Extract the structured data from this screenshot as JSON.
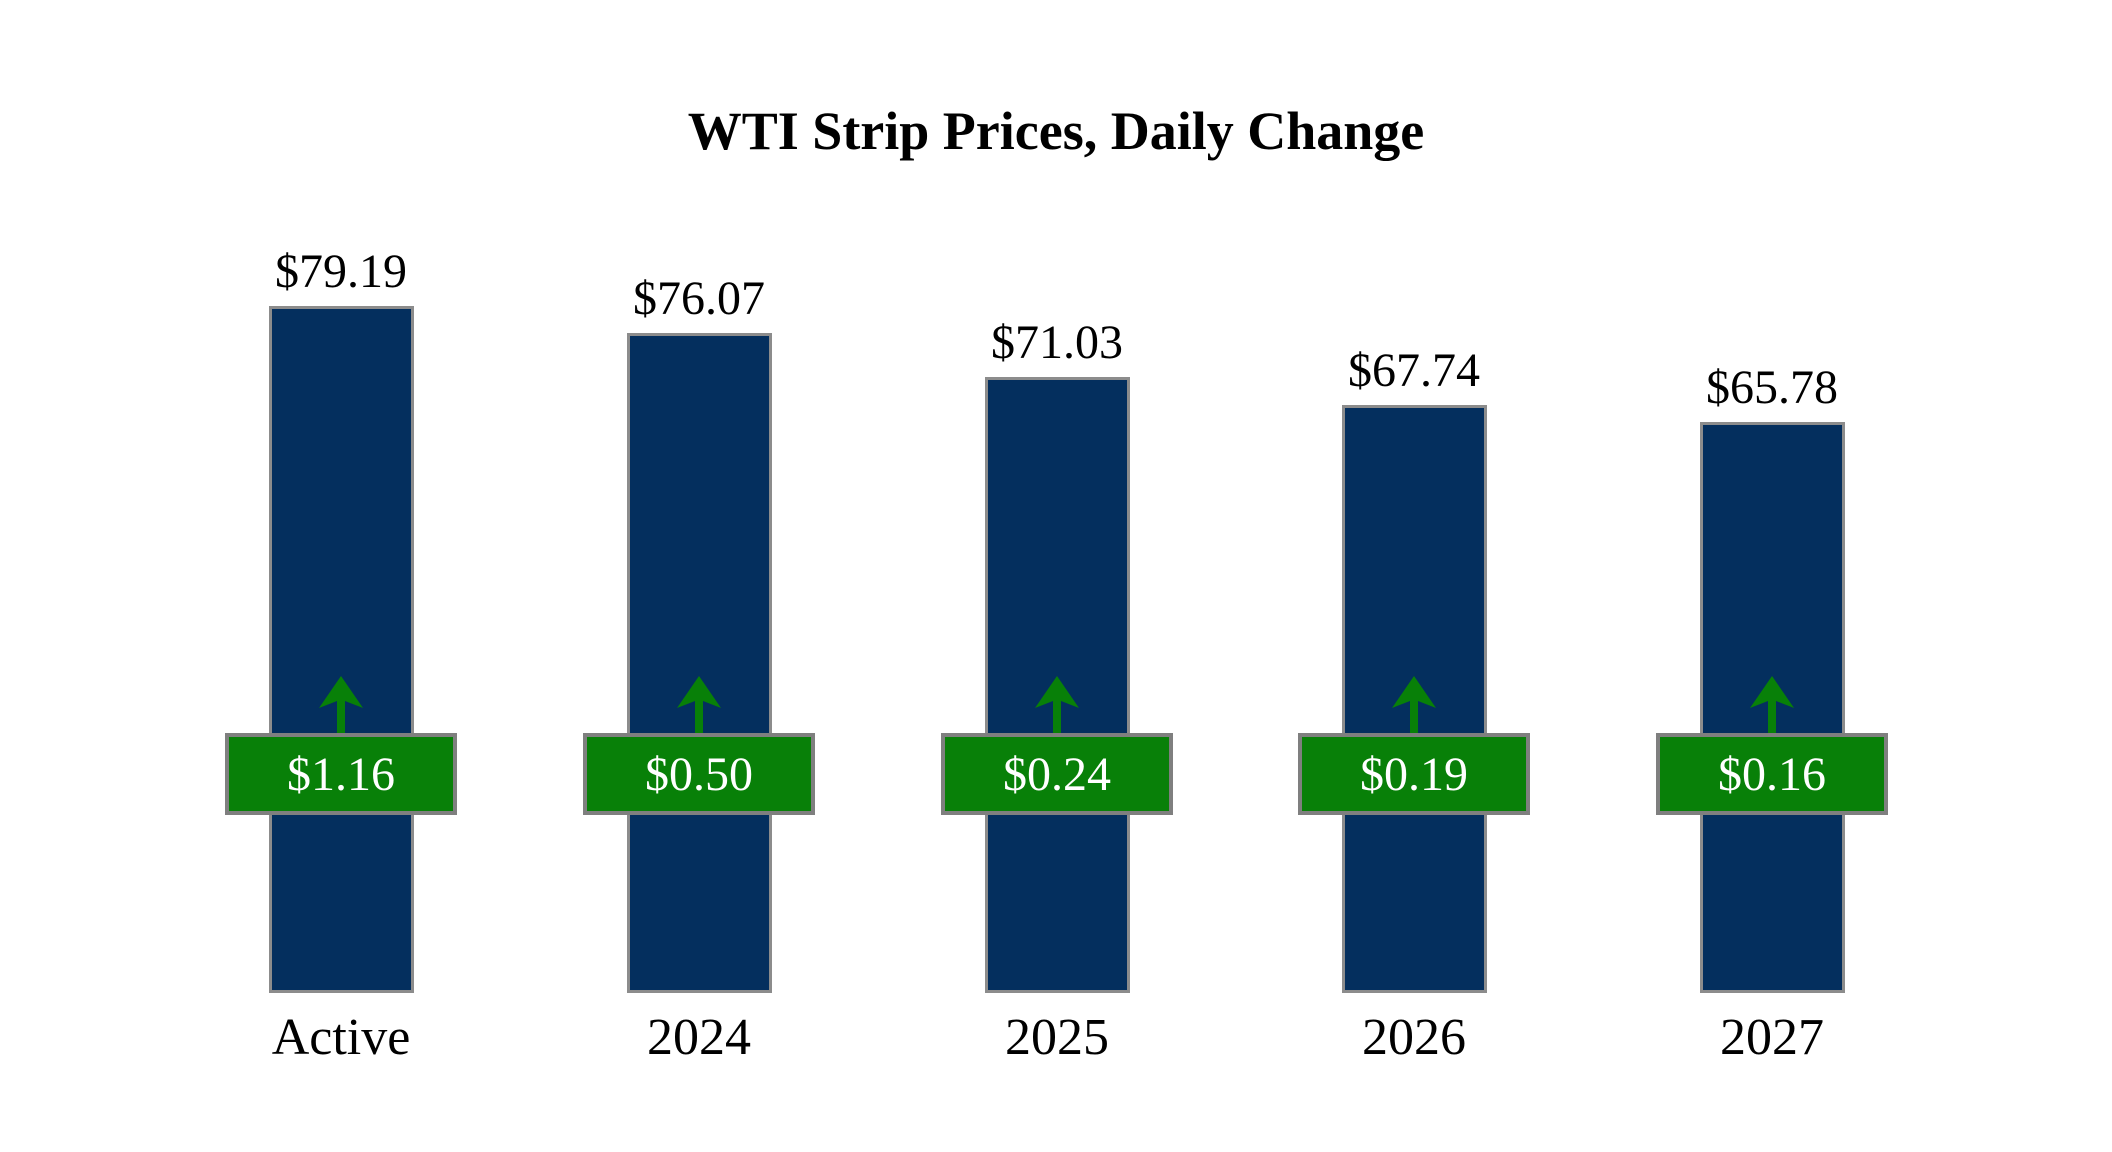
{
  "title": "WTI Strip Prices, Daily Change",
  "chart_data": {
    "type": "bar",
    "title": "WTI Strip Prices, Daily Change",
    "categories": [
      "Active",
      "2024",
      "2025",
      "2026",
      "2027"
    ],
    "series": [
      {
        "name": "Strip Price ($/bbl)",
        "values": [
          79.19,
          76.07,
          71.03,
          67.74,
          65.78
        ]
      },
      {
        "name": "Daily Change ($)",
        "values": [
          1.16,
          0.5,
          0.24,
          0.19,
          0.16
        ]
      }
    ],
    "price_labels": [
      "$79.19",
      "$76.07",
      "$71.03",
      "$67.74",
      "$65.78"
    ],
    "change_labels": [
      "$1.16",
      "$0.50",
      "$0.24",
      "$0.19",
      "$0.16"
    ],
    "change_direction": [
      "up",
      "up",
      "up",
      "up",
      "up"
    ],
    "ylim": [
      0,
      79.19
    ],
    "grid": false,
    "legend_position": "none",
    "colors": {
      "bar_fill": "#042F5E",
      "bar_border": "#8C8C8C",
      "badge_fill": "#088008",
      "badge_border": "#7F7F7F",
      "badge_text": "#FFFFFF",
      "arrow": "#088008",
      "label_text": "#000000",
      "background": "#FFFFFF"
    }
  }
}
